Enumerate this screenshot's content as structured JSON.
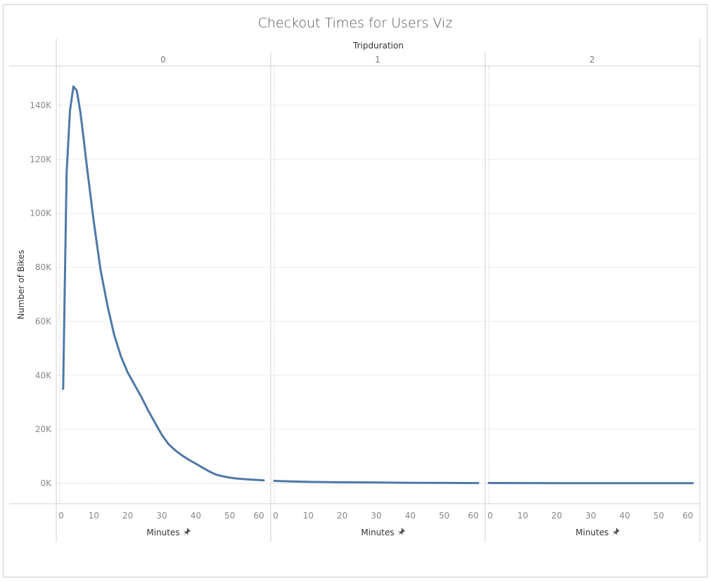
{
  "chart_data": {
    "type": "line",
    "title": "Checkout Times for Users Viz",
    "column_header": "Tripduration",
    "panes": [
      "0",
      "1",
      "2"
    ],
    "xlabel": "Minutes",
    "ylabel": "Number of Bikes",
    "xlim": [
      0,
      60
    ],
    "ylim": [
      0,
      150000
    ],
    "x_ticks": [
      "0",
      "10",
      "20",
      "30",
      "40",
      "50",
      "60"
    ],
    "y_ticks": [
      {
        "value": 0,
        "label": "0K"
      },
      {
        "value": 20000,
        "label": "20K"
      },
      {
        "value": 40000,
        "label": "40K"
      },
      {
        "value": 60000,
        "label": "60K"
      },
      {
        "value": 80000,
        "label": "80K"
      },
      {
        "value": 100000,
        "label": "100K"
      },
      {
        "value": 120000,
        "label": "120K"
      },
      {
        "value": 140000,
        "label": "140K"
      }
    ],
    "color": "#4e79a7",
    "series": [
      {
        "pane": "0",
        "x": [
          1,
          2,
          3,
          4,
          5,
          6,
          7,
          8,
          10,
          12,
          14,
          16,
          18,
          20,
          22,
          24,
          26,
          28,
          30,
          32,
          34,
          36,
          38,
          40,
          42,
          44,
          46,
          48,
          50,
          52,
          55,
          60
        ],
        "y": [
          35000,
          115000,
          138000,
          147000,
          145500,
          138000,
          128000,
          117000,
          97000,
          79000,
          66000,
          55000,
          47000,
          41000,
          36500,
          32000,
          27000,
          22500,
          18000,
          14500,
          12200,
          10300,
          8700,
          7300,
          5800,
          4400,
          3200,
          2600,
          2100,
          1800,
          1500,
          1100
        ]
      },
      {
        "pane": "1",
        "x": [
          0,
          5,
          10,
          20,
          30,
          40,
          50,
          60
        ],
        "y": [
          900,
          700,
          550,
          400,
          300,
          200,
          150,
          100
        ]
      },
      {
        "pane": "2",
        "x": [
          0,
          10,
          20,
          30,
          40,
          50,
          60
        ],
        "y": [
          120,
          100,
          90,
          80,
          70,
          60,
          50
        ]
      }
    ]
  }
}
